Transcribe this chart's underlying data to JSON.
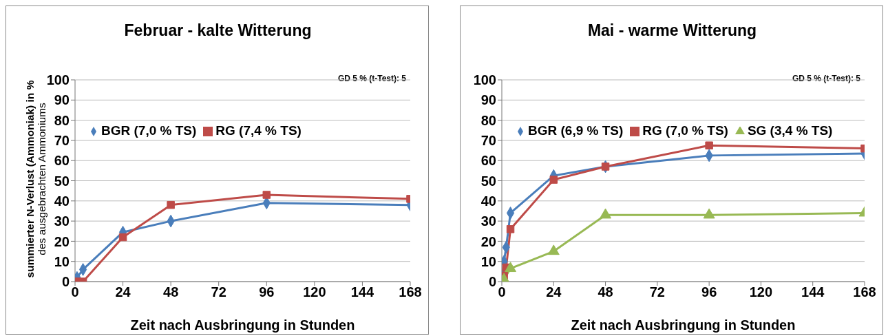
{
  "chart_data": [
    {
      "type": "line",
      "title": "Februar - kalte Witterung",
      "xlabel": "Zeit nach Ausbringung  in Stunden",
      "ylabel": "summierter  N-Verlust (Ammoniak) in %\ndes ausgebrachten Ammoniums",
      "annotations": [
        "GD 5 % (t-Test): 5"
      ],
      "xlim": [
        0,
        168
      ],
      "xticks": [
        0,
        24,
        48,
        72,
        96,
        120,
        144,
        168
      ],
      "ylim": [
        0,
        100
      ],
      "yticks": [
        0,
        10,
        20,
        30,
        40,
        50,
        60,
        70,
        80,
        90,
        100
      ],
      "grid": "y",
      "legend": "top",
      "line_style": "solid",
      "series": [
        {
          "name": "BGR (7,0 % TS)",
          "color": "#4a7ebb",
          "marker": "diamond",
          "x": [
            0,
            1,
            4,
            24,
            48,
            96,
            168
          ],
          "values": [
            0,
            2,
            6,
            24.5,
            30,
            39,
            38
          ]
        },
        {
          "name": "RG (7,4 % TS)",
          "color": "#be4b48",
          "marker": "square",
          "x": [
            0,
            1,
            4,
            24,
            48,
            96,
            168
          ],
          "values": [
            0,
            0,
            0,
            22,
            38,
            43,
            41
          ]
        }
      ]
    },
    {
      "type": "line",
      "title": "Mai - warme Witterung",
      "xlabel": "Zeit nach Ausbringung  in Stunden",
      "annotations": [
        "GD 5 % (t-Test): 5"
      ],
      "xlim": [
        0,
        168
      ],
      "xticks": [
        0,
        24,
        48,
        72,
        96,
        120,
        144,
        168
      ],
      "ylim": [
        0,
        100
      ],
      "yticks": [
        0,
        10,
        20,
        30,
        40,
        50,
        60,
        70,
        80,
        90,
        100
      ],
      "grid": "y",
      "legend": "top",
      "line_style": "solid",
      "series": [
        {
          "name": "BGR (6,9 % TS)",
          "color": "#4a7ebb",
          "marker": "diamond",
          "x": [
            0,
            1,
            2,
            4,
            24,
            48,
            96,
            168
          ],
          "values": [
            0,
            10,
            17,
            34,
            52.5,
            57,
            62.5,
            63.5
          ]
        },
        {
          "name": "RG (7,0 % TS)",
          "color": "#be4b48",
          "marker": "square",
          "x": [
            0,
            1,
            2,
            4,
            24,
            48,
            96,
            168
          ],
          "values": [
            0,
            3,
            7,
            26,
            50.5,
            57,
            67.5,
            66
          ]
        },
        {
          "name": "SG (3,4 % TS)",
          "color": "#98b954",
          "marker": "triangle",
          "x": [
            0,
            1,
            4,
            24,
            48,
            96,
            168
          ],
          "values": [
            0,
            1,
            6.5,
            15,
            33,
            33,
            34
          ]
        }
      ]
    }
  ]
}
